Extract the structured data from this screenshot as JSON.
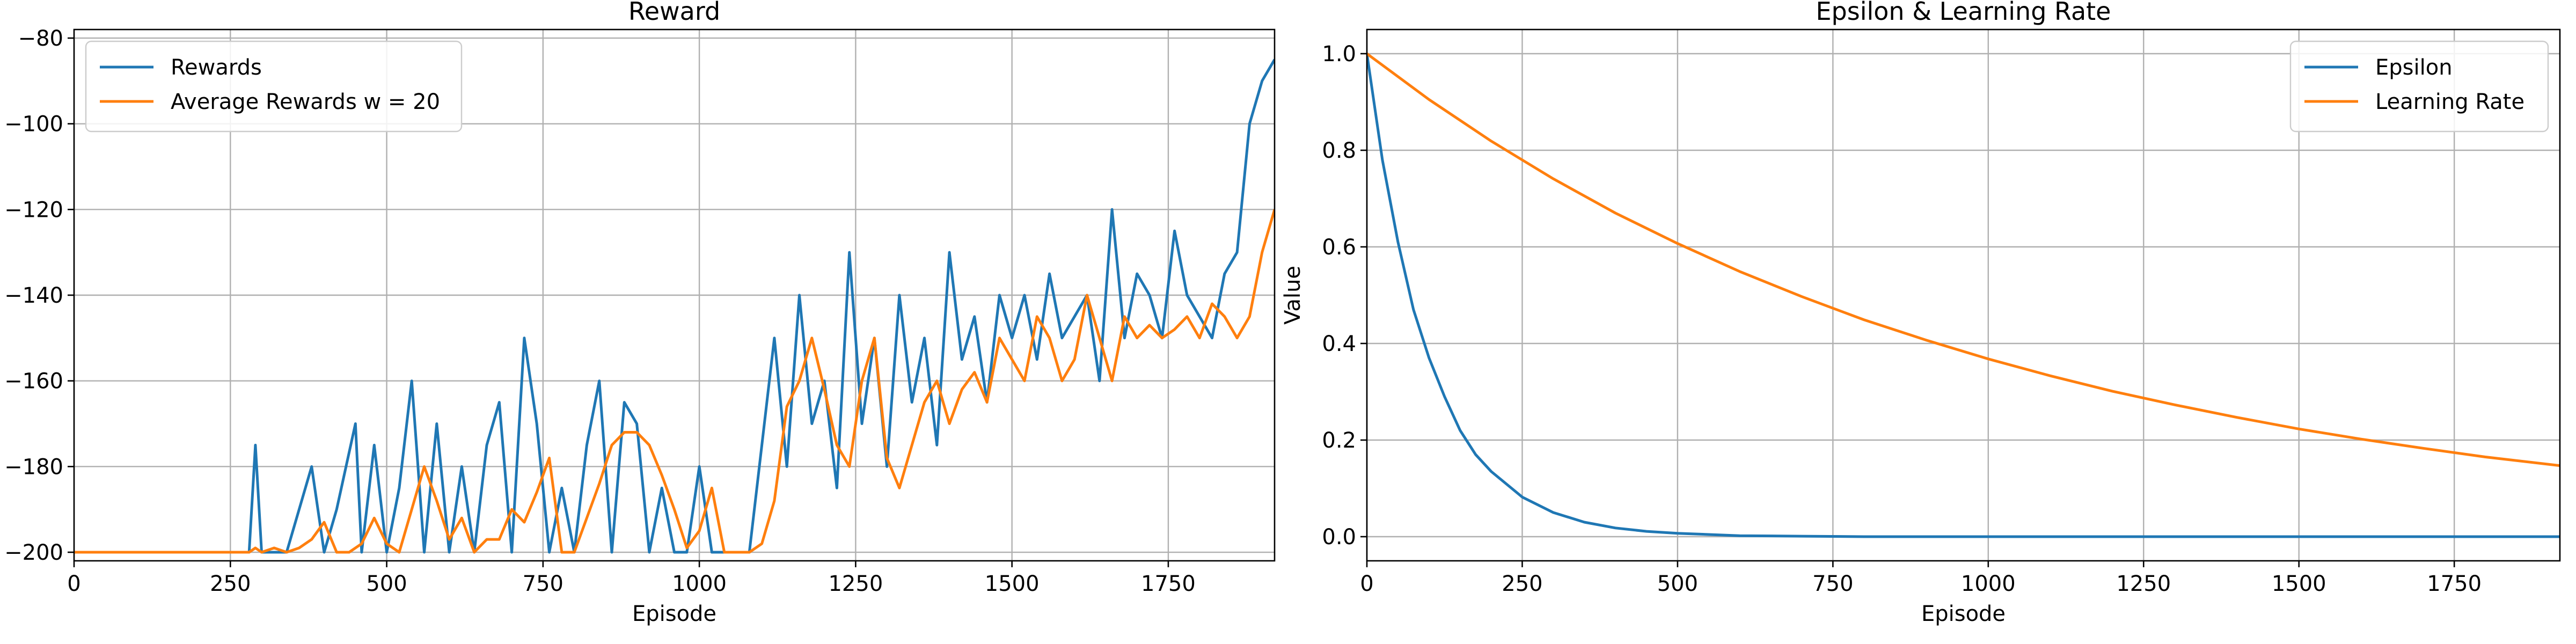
{
  "chart_data": [
    {
      "type": "line",
      "title": "Reward",
      "xlabel": "Episode",
      "ylabel": "",
      "xlim": [
        0,
        1920
      ],
      "ylim": [
        -202,
        -78
      ],
      "xticks": [
        0,
        250,
        500,
        750,
        1000,
        1250,
        1500,
        1750
      ],
      "yticks": [
        -200,
        -180,
        -160,
        -140,
        -120,
        -100,
        -80
      ],
      "grid": true,
      "legend": "top-left",
      "legend_entries": [
        "Rewards",
        "Average Rewards w = 20"
      ],
      "series": [
        {
          "name": "Rewards",
          "color": "#1f77b4",
          "x": [
            0,
            50,
            100,
            150,
            200,
            250,
            280,
            290,
            300,
            340,
            380,
            400,
            420,
            450,
            460,
            480,
            500,
            520,
            540,
            560,
            580,
            600,
            620,
            640,
            660,
            680,
            700,
            720,
            740,
            760,
            780,
            800,
            820,
            840,
            860,
            880,
            900,
            920,
            940,
            960,
            980,
            1000,
            1020,
            1040,
            1060,
            1080,
            1100,
            1120,
            1140,
            1160,
            1180,
            1200,
            1220,
            1240,
            1260,
            1280,
            1300,
            1320,
            1340,
            1360,
            1380,
            1400,
            1420,
            1440,
            1460,
            1480,
            1500,
            1520,
            1540,
            1560,
            1580,
            1600,
            1620,
            1640,
            1660,
            1680,
            1700,
            1720,
            1740,
            1760,
            1780,
            1800,
            1820,
            1840,
            1860,
            1880,
            1900,
            1920
          ],
          "values": [
            -200,
            -200,
            -200,
            -200,
            -200,
            -200,
            -200,
            -175,
            -200,
            -200,
            -180,
            -200,
            -190,
            -170,
            -200,
            -175,
            -200,
            -185,
            -160,
            -200,
            -170,
            -200,
            -180,
            -200,
            -175,
            -165,
            -200,
            -150,
            -170,
            -200,
            -185,
            -200,
            -175,
            -160,
            -200,
            -165,
            -170,
            -200,
            -185,
            -200,
            -200,
            -180,
            -200,
            -200,
            -200,
            -200,
            -175,
            -150,
            -180,
            -140,
            -170,
            -160,
            -185,
            -130,
            -170,
            -150,
            -180,
            -140,
            -165,
            -150,
            -175,
            -130,
            -155,
            -145,
            -165,
            -140,
            -150,
            -140,
            -155,
            -135,
            -150,
            -145,
            -140,
            -160,
            -120,
            -150,
            -135,
            -140,
            -150,
            -125,
            -140,
            -145,
            -150,
            -135,
            -130,
            -100,
            -90,
            -85
          ]
        },
        {
          "name": "Average Rewards w = 20",
          "color": "#ff7f0e",
          "x": [
            0,
            100,
            200,
            280,
            290,
            300,
            320,
            340,
            360,
            380,
            400,
            420,
            440,
            460,
            480,
            500,
            520,
            540,
            560,
            580,
            600,
            620,
            640,
            660,
            680,
            700,
            720,
            740,
            760,
            780,
            800,
            820,
            840,
            860,
            880,
            900,
            920,
            940,
            960,
            980,
            1000,
            1020,
            1040,
            1060,
            1080,
            1100,
            1120,
            1140,
            1160,
            1180,
            1200,
            1220,
            1240,
            1260,
            1280,
            1300,
            1320,
            1340,
            1360,
            1380,
            1400,
            1420,
            1440,
            1460,
            1480,
            1500,
            1520,
            1540,
            1560,
            1580,
            1600,
            1620,
            1640,
            1660,
            1680,
            1700,
            1720,
            1740,
            1760,
            1780,
            1800,
            1820,
            1840,
            1860,
            1880,
            1900,
            1920
          ],
          "values": [
            -200,
            -200,
            -200,
            -200,
            -199,
            -200,
            -199,
            -200,
            -199,
            -197,
            -193,
            -200,
            -200,
            -198,
            -192,
            -198,
            -200,
            -190,
            -180,
            -188,
            -197,
            -192,
            -200,
            -197,
            -197,
            -190,
            -193,
            -186,
            -178,
            -200,
            -200,
            -192,
            -184,
            -175,
            -172,
            -172,
            -175,
            -182,
            -190,
            -199,
            -195,
            -185,
            -200,
            -200,
            -200,
            -198,
            -188,
            -166,
            -160,
            -150,
            -162,
            -175,
            -180,
            -160,
            -150,
            -178,
            -185,
            -175,
            -165,
            -160,
            -170,
            -162,
            -158,
            -165,
            -150,
            -155,
            -160,
            -145,
            -150,
            -160,
            -155,
            -140,
            -150,
            -160,
            -145,
            -150,
            -147,
            -150,
            -148,
            -145,
            -150,
            -142,
            -145,
            -150,
            -145,
            -130,
            -120
          ]
        }
      ]
    },
    {
      "type": "line",
      "title": "Epsilon & Learning Rate",
      "xlabel": "Episode",
      "ylabel": "Value",
      "xlim": [
        0,
        1920
      ],
      "ylim": [
        -0.05,
        1.05
      ],
      "xticks": [
        0,
        250,
        500,
        750,
        1000,
        1250,
        1500,
        1750
      ],
      "yticks": [
        0.0,
        0.2,
        0.4,
        0.6,
        0.8,
        1.0
      ],
      "grid": true,
      "legend": "top-right",
      "legend_entries": [
        "Epsilon",
        "Learning Rate"
      ],
      "series": [
        {
          "name": "Epsilon",
          "color": "#1f77b4",
          "x": [
            0,
            25,
            50,
            75,
            100,
            125,
            150,
            175,
            200,
            250,
            300,
            350,
            400,
            450,
            500,
            600,
            700,
            800,
            1000,
            1200,
            1500,
            1920
          ],
          "values": [
            1.0,
            0.78,
            0.61,
            0.47,
            0.37,
            0.29,
            0.22,
            0.17,
            0.135,
            0.082,
            0.05,
            0.03,
            0.018,
            0.011,
            0.007,
            0.002,
            0.001,
            0.0,
            0.0,
            0.0,
            0.0,
            0.0
          ]
        },
        {
          "name": "Learning Rate",
          "color": "#ff7f0e",
          "x": [
            0,
            100,
            200,
            300,
            400,
            500,
            600,
            700,
            800,
            900,
            1000,
            1100,
            1200,
            1300,
            1400,
            1500,
            1600,
            1700,
            1800,
            1920
          ],
          "values": [
            1.0,
            0.905,
            0.819,
            0.741,
            0.67,
            0.607,
            0.549,
            0.497,
            0.449,
            0.407,
            0.368,
            0.333,
            0.301,
            0.273,
            0.247,
            0.223,
            0.202,
            0.183,
            0.165,
            0.147
          ]
        }
      ]
    }
  ]
}
